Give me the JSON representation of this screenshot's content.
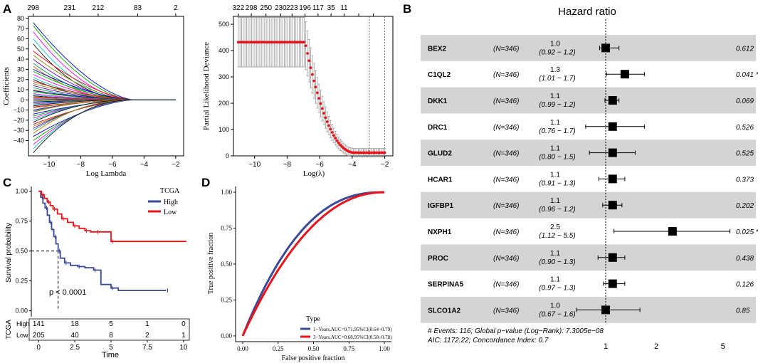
{
  "panels": {
    "a": "A",
    "b": "B",
    "c": "C",
    "d": "D"
  },
  "chart_data": [
    {
      "id": "A-left",
      "type": "line",
      "title": "",
      "xlabel": "Log Lambda",
      "ylabel": "Coefficients",
      "xlim": [
        -11.3,
        -1.5
      ],
      "ylim": [
        -55,
        82
      ],
      "x_ticks": [
        -10,
        -8,
        -6,
        -4,
        -2
      ],
      "y_ticks": [
        -40,
        -30,
        -20,
        -10,
        0,
        10,
        20,
        30,
        40,
        50,
        60,
        70,
        80
      ],
      "top_ticks": {
        "positions": [
          -11,
          -8.7,
          -6.9,
          -4.4,
          -2.0
        ],
        "labels": [
          "298",
          "231",
          "212",
          "83",
          "2"
        ]
      },
      "series_start_values": [
        76,
        73,
        67,
        60,
        55,
        48,
        44,
        40,
        36,
        33,
        30,
        28,
        25,
        22,
        20,
        18,
        16,
        14,
        12,
        10,
        9,
        8,
        6,
        5,
        4,
        3,
        2,
        1,
        0,
        -1,
        -2,
        -3,
        -4,
        -5,
        -6,
        -7,
        -8,
        -10,
        -11,
        -12,
        -14,
        -16,
        -18,
        -20,
        -22,
        -24,
        -26,
        -28,
        -30,
        -33,
        -36,
        -40,
        -44,
        -48,
        -52
      ],
      "x_lambda_zero": -4.6
    },
    {
      "id": "A-right",
      "type": "scatter",
      "xlabel": "Log(λ)",
      "ylabel": "Partial Likelihood Deviance",
      "xlim": [
        -11.3,
        -1.5
      ],
      "ylim": [
        0,
        530
      ],
      "x_ticks": [
        -10,
        -8,
        -6,
        -4,
        -2
      ],
      "y_ticks": [
        0,
        100,
        200,
        300,
        400,
        500
      ],
      "top_ticks": {
        "positions": [
          -11,
          -10.2,
          -9.3,
          -8.4,
          -7.7,
          -6.9,
          -6.1,
          -5.3,
          -4.5,
          -3.6,
          -2.7
        ],
        "labels": [
          "322",
          "298",
          "250",
          "230",
          "223",
          "196",
          "117",
          "35",
          "11",
          "",
          ""
        ]
      },
      "plateau": 432,
      "error_halfwidth_plateau": 92,
      "min_value": 12,
      "drop_start": -6.9,
      "drop_end": -3.8,
      "vlines": [
        -2.95,
        -2.0
      ]
    },
    {
      "id": "C",
      "type": "line",
      "title": "",
      "xlabel": "Time",
      "ylabel": "Survival probability",
      "xlim": [
        -0.5,
        10.4
      ],
      "ylim": [
        0,
        1.0
      ],
      "x_ticks": [
        0,
        2.5,
        5,
        7.5,
        10
      ],
      "x_tick_labels": [
        "0",
        "2.5",
        "5",
        "7.5",
        "10"
      ],
      "y_ticks": [
        0,
        0.25,
        0.5,
        0.75,
        1.0
      ],
      "y_tick_labels": [
        "0.00",
        "0.25",
        "0.50",
        "0.75",
        "1.00"
      ],
      "legend_title": "TCGA",
      "series": [
        {
          "name": "High",
          "color": "#3b4a97",
          "x": [
            0,
            0.15,
            0.3,
            0.45,
            0.6,
            0.75,
            0.9,
            1.05,
            1.2,
            1.35,
            1.5,
            1.8,
            2.2,
            2.7,
            3.2,
            3.8,
            4.3,
            5.0,
            5.5,
            8.8
          ],
          "y": [
            1.0,
            0.95,
            0.9,
            0.86,
            0.8,
            0.74,
            0.68,
            0.62,
            0.56,
            0.5,
            0.44,
            0.4,
            0.38,
            0.37,
            0.36,
            0.34,
            0.22,
            0.19,
            0.17,
            0.17
          ]
        },
        {
          "name": "Low",
          "color": "#e8141b",
          "x": [
            0,
            0.2,
            0.4,
            0.6,
            0.8,
            1.0,
            1.3,
            1.6,
            2.0,
            2.4,
            2.8,
            3.2,
            3.6,
            4.0,
            4.6,
            5.0,
            10.2
          ],
          "y": [
            1.0,
            0.97,
            0.94,
            0.91,
            0.88,
            0.85,
            0.81,
            0.77,
            0.74,
            0.71,
            0.69,
            0.67,
            0.66,
            0.66,
            0.66,
            0.58,
            0.58
          ]
        }
      ],
      "median_line": {
        "x": 1.35,
        "y": 0.5
      },
      "pvalue": "p < 0.0001",
      "risk_table": {
        "title": "TCGA",
        "rows": [
          {
            "name": "High",
            "counts": [
              "141",
              "18",
              "5",
              "1",
              "0"
            ]
          },
          {
            "name": "Low",
            "counts": [
              "205",
              "40",
              "8",
              "2",
              "1"
            ]
          }
        ]
      }
    },
    {
      "id": "D",
      "type": "line",
      "xlabel": "False positive fraction",
      "ylabel": "True positive fraction",
      "xlim": [
        0,
        1
      ],
      "ylim": [
        0,
        1
      ],
      "x_ticks": [
        0,
        0.25,
        0.5,
        0.75,
        1.0
      ],
      "x_tick_labels": [
        "0.00",
        "0.25",
        "0.50",
        "0.75",
        "1.00"
      ],
      "y_ticks": [
        0,
        0.25,
        0.5,
        0.75,
        1.0
      ],
      "y_tick_labels": [
        "0.00",
        "0.25",
        "0.50",
        "0.75",
        "1.00"
      ],
      "legend_title": "Type",
      "series": [
        {
          "name": "1−Years,AUC=0.71,95%CI(0.64−0.79)",
          "color": "#3b4a97",
          "auc": 0.71
        },
        {
          "name": "3−Years,AUC=0.68,95%CI(0.58−0.78)",
          "color": "#e8141b",
          "auc": 0.68
        }
      ]
    },
    {
      "id": "B",
      "type": "forest",
      "title": "Hazard ratio",
      "x_tick_values": [
        1,
        2,
        5
      ],
      "x_tick_labels": [
        "1",
        "2",
        "5"
      ],
      "rows": [
        {
          "gene": "BEX2",
          "n": "(N=346)",
          "hr": 1.0,
          "hr_label": "1.0",
          "ci_label": "(0.92 − 1.2)",
          "lo": 0.92,
          "hi": 1.2,
          "p": "0.612"
        },
        {
          "gene": "C1QL2",
          "n": "(N=346)",
          "hr": 1.3,
          "hr_label": "1.3",
          "ci_label": "(1.01 − 1.7)",
          "lo": 1.01,
          "hi": 1.7,
          "p": "0.041 *"
        },
        {
          "gene": "DKK1",
          "n": "(N=346)",
          "hr": 1.1,
          "hr_label": "1.1",
          "ci_label": "(0.99 − 1.2)",
          "lo": 0.99,
          "hi": 1.2,
          "p": "0.069"
        },
        {
          "gene": "DRC1",
          "n": "(N=346)",
          "hr": 1.1,
          "hr_label": "1.1",
          "ci_label": "(0.76 − 1.7)",
          "lo": 0.76,
          "hi": 1.7,
          "p": "0.526"
        },
        {
          "gene": "GLUD2",
          "n": "(N=346)",
          "hr": 1.1,
          "hr_label": "1.1",
          "ci_label": "(0.80 − 1.5)",
          "lo": 0.8,
          "hi": 1.5,
          "p": "0.525"
        },
        {
          "gene": "HCAR1",
          "n": "(N=346)",
          "hr": 1.1,
          "hr_label": "1.1",
          "ci_label": "(0.91 − 1.3)",
          "lo": 0.91,
          "hi": 1.3,
          "p": "0.373"
        },
        {
          "gene": "IGFBP1",
          "n": "(N=346)",
          "hr": 1.1,
          "hr_label": "1.1",
          "ci_label": "(0.96 − 1.2)",
          "lo": 0.96,
          "hi": 1.25,
          "p": "0.202"
        },
        {
          "gene": "NXPH1",
          "n": "(N=346)",
          "hr": 2.5,
          "hr_label": "2.5",
          "ci_label": "(1.12 − 5.5)",
          "lo": 1.12,
          "hi": 5.5,
          "p": "0.025 *"
        },
        {
          "gene": "PROC",
          "n": "(N=346)",
          "hr": 1.1,
          "hr_label": "1.1",
          "ci_label": "(0.90 − 1.3)",
          "lo": 0.9,
          "hi": 1.3,
          "p": "0.438"
        },
        {
          "gene": "SERPINA5",
          "n": "(N=346)",
          "hr": 1.1,
          "hr_label": "1.1",
          "ci_label": "(0.97 − 1.3)",
          "lo": 0.97,
          "hi": 1.3,
          "p": "0.126"
        },
        {
          "gene": "SLCO1A2",
          "n": "(N=346)",
          "hr": 1.0,
          "hr_label": "1.0",
          "ci_label": "(0.67 − 1.6)",
          "lo": 0.67,
          "hi": 1.6,
          "p": "0.85"
        }
      ],
      "footer_line1": "# Events: 116; Global p−value (Log−Rank): 7.3005e−08",
      "footer_line2": "AIC: 1172.22; Concordance Index: 0.7"
    }
  ]
}
